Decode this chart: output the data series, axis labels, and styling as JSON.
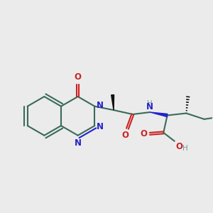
{
  "bg_color": "#ebebeb",
  "bond_color": "#3a6b5a",
  "nitrogen_color": "#2222cc",
  "oxygen_color": "#cc2222",
  "hydrogen_color": "#7a9a9a",
  "line_width": 1.5,
  "fig_width": 3.0,
  "fig_height": 3.0,
  "dpi": 100,
  "xlim": [
    0.0,
    10.0
  ],
  "ylim": [
    2.5,
    8.5
  ]
}
